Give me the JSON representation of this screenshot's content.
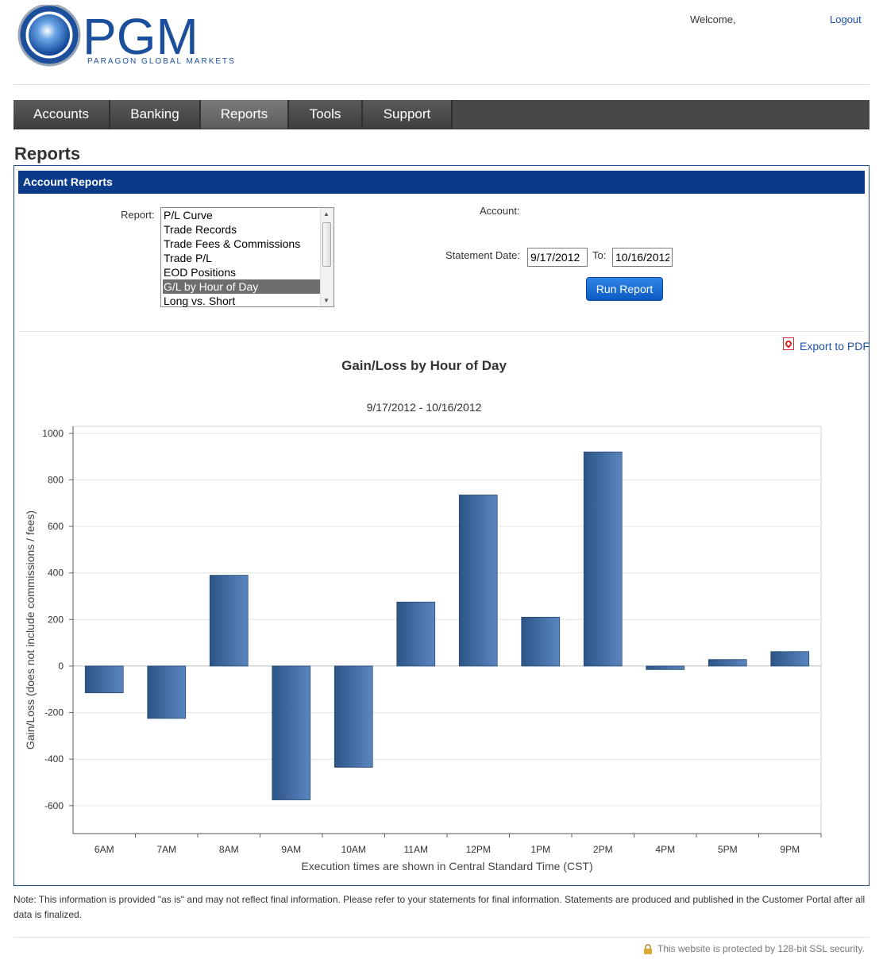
{
  "brand": {
    "name": "PGM",
    "tagline": "PARAGON GLOBAL MARKETS"
  },
  "header": {
    "welcome": "Welcome,",
    "logout": "Logout"
  },
  "nav": [
    {
      "label": "Accounts",
      "active": false
    },
    {
      "label": "Banking",
      "active": false
    },
    {
      "label": "Reports",
      "active": true
    },
    {
      "label": "Tools",
      "active": false
    },
    {
      "label": "Support",
      "active": false
    }
  ],
  "page": {
    "title": "Reports",
    "panel_title": "Account Reports"
  },
  "form": {
    "report_label": "Report:",
    "report_options": [
      "P/L Curve",
      "Trade Records",
      "Trade Fees & Commissions",
      "Trade P/L",
      "EOD Positions",
      "G/L by Hour of Day",
      "Long vs. Short"
    ],
    "report_selected": "G/L by Hour of Day",
    "account_label": "Account:",
    "statement_date_label": "Statement Date:",
    "from_date": "9/17/2012",
    "to_label": "To:",
    "to_date": "10/16/2012",
    "run_button": "Run Report"
  },
  "export_label": "Export to PDF",
  "chart_data": {
    "type": "bar",
    "title": "Gain/Loss by Hour of Day",
    "subtitle": "9/17/2012 - 10/16/2012",
    "xlabel": "Execution times are shown in Central Standard Time (CST)",
    "ylabel": "Gain/Loss (does not include commissions / fees)",
    "categories": [
      "6AM",
      "7AM",
      "8AM",
      "9AM",
      "10AM",
      "11AM",
      "12PM",
      "1PM",
      "2PM",
      "4PM",
      "5PM",
      "9PM"
    ],
    "values": [
      -115,
      -225,
      390,
      -575,
      -435,
      275,
      735,
      210,
      920,
      -15,
      28,
      62
    ],
    "ylim": [
      -720,
      1030
    ],
    "yticks": [
      -600,
      -400,
      -200,
      0,
      200,
      400,
      600,
      800,
      1000
    ],
    "grid": true,
    "bar_color": "#3a679e"
  },
  "note": "Note: This information is provided \"as is\" and may not reflect final information. Please refer to your statements for final information. Statements are produced and published in the Customer Portal after all data is finalized.",
  "footer": {
    "ssl": "This website is protected by 128-bit SSL security."
  }
}
